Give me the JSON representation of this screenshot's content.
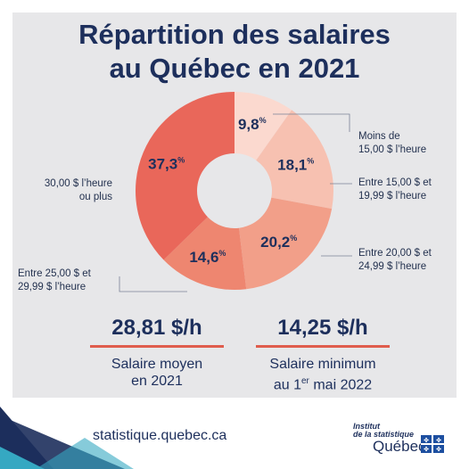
{
  "title_line1": "Répartition des salaires",
  "title_line2": "au Québec en 2021",
  "chart_data": {
    "type": "pie",
    "variant": "donut",
    "title": "Répartition des salaires au Québec en 2021",
    "slices": [
      {
        "label_line1": "Moins de",
        "label_line2": "15,00 $ l’heure",
        "value": 9.8,
        "display": "9,8",
        "color": "#fbd9cf"
      },
      {
        "label_line1": "Entre 15,00 $ et",
        "label_line2": "19,99 $ l’heure",
        "value": 18.1,
        "display": "18,1",
        "color": "#f7c1b1"
      },
      {
        "label_line1": "Entre 20,00 $ et",
        "label_line2": "24,99 $ l’heure",
        "value": 20.2,
        "display": "20,2",
        "color": "#f29f89"
      },
      {
        "label_line1": "Entre 25,00 $ et",
        "label_line2": "29,99 $ l’heure",
        "value": 14.6,
        "display": "14,6",
        "color": "#ee8670"
      },
      {
        "label_line1": "30,00 $ l’heure",
        "label_line2": "ou plus",
        "value": 37.3,
        "display": "37,3",
        "color": "#e9675a"
      }
    ],
    "percent_symbol": "%"
  },
  "stats": {
    "average": {
      "value": "28,81 $/h",
      "caption_line1": "Salaire moyen",
      "caption_line2": "en 2021"
    },
    "minimum": {
      "value": "14,25 $/h",
      "caption_line1_pre": "Salaire minimum",
      "caption_line2_pre": "au 1",
      "caption_sup": "er",
      "caption_line2_post": " mai 2022"
    }
  },
  "footer": {
    "url": "statistique.quebec.ca",
    "logo_line1": "Institut",
    "logo_line2": "de la statistique",
    "logo_main": "Québec"
  },
  "colors": {
    "navy": "#1d2f5c",
    "accent": "#e05d4d",
    "teal": "#35a8c2"
  }
}
